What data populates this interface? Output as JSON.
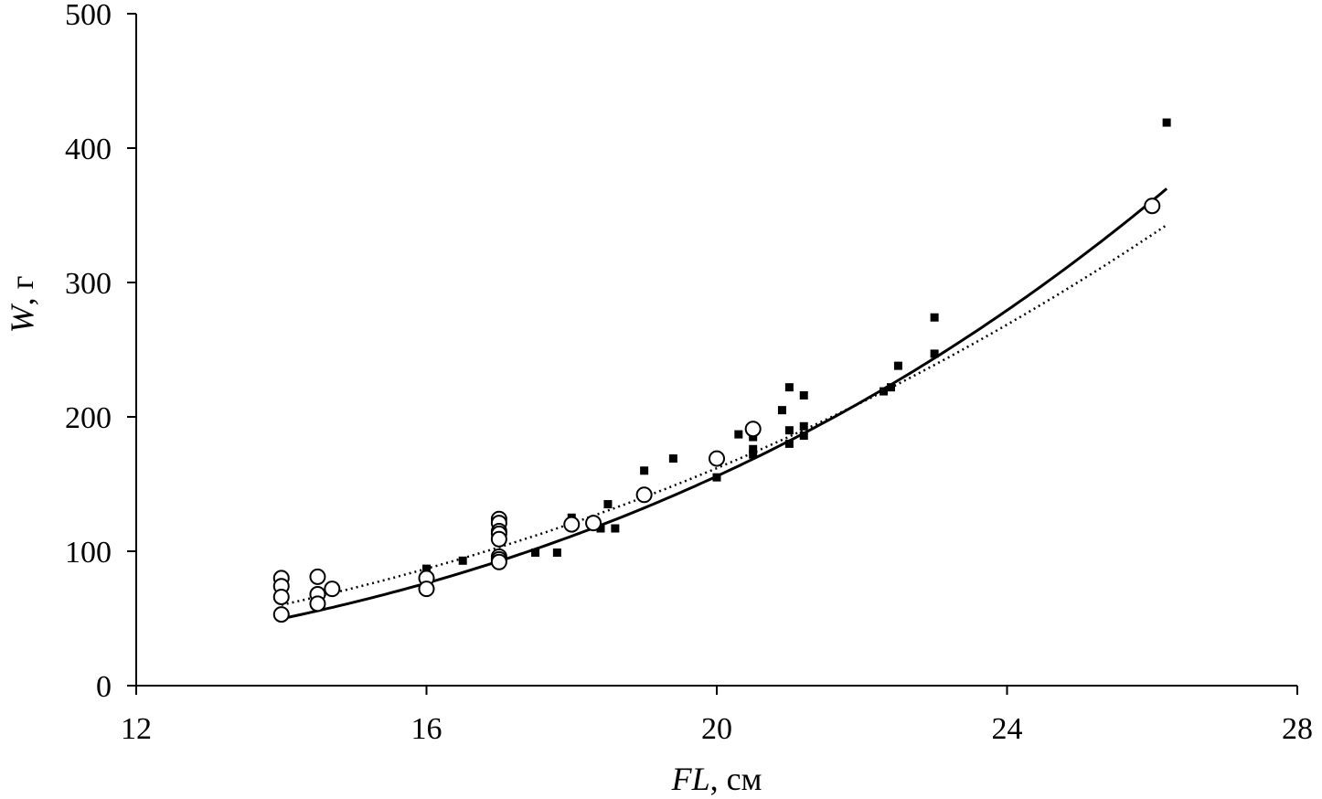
{
  "chart_data": {
    "type": "scatter",
    "xlabel": {
      "var": "FL",
      "unit": ", см"
    },
    "ylabel": {
      "var": "W",
      "unit": ", г"
    },
    "xlim": [
      12,
      28
    ],
    "ylim": [
      0,
      500
    ],
    "xticks": [
      12,
      16,
      20,
      24,
      28
    ],
    "yticks": [
      0,
      100,
      200,
      300,
      400,
      500
    ],
    "grid": false,
    "series": [
      {
        "marker": "filled-square",
        "points": [
          [
            16.0,
            87
          ],
          [
            16.5,
            93
          ],
          [
            17.5,
            99
          ],
          [
            17.8,
            99
          ],
          [
            18.0,
            122
          ],
          [
            18.0,
            125
          ],
          [
            18.4,
            117
          ],
          [
            18.5,
            135
          ],
          [
            18.6,
            117
          ],
          [
            19.0,
            160
          ],
          [
            19.4,
            169
          ],
          [
            20.0,
            155
          ],
          [
            20.3,
            187
          ],
          [
            20.5,
            185
          ],
          [
            20.5,
            176
          ],
          [
            20.5,
            172
          ],
          [
            20.9,
            205
          ],
          [
            21.0,
            222
          ],
          [
            21.0,
            190
          ],
          [
            21.0,
            180
          ],
          [
            21.2,
            216
          ],
          [
            21.2,
            193
          ],
          [
            21.2,
            186
          ],
          [
            22.3,
            219
          ],
          [
            22.4,
            222
          ],
          [
            22.5,
            238
          ],
          [
            23.0,
            274
          ],
          [
            23.0,
            247
          ],
          [
            26.2,
            419
          ]
        ]
      },
      {
        "marker": "open-circle",
        "points": [
          [
            14.0,
            80
          ],
          [
            14.0,
            74
          ],
          [
            14.0,
            66
          ],
          [
            14.0,
            53
          ],
          [
            14.5,
            81
          ],
          [
            14.5,
            68
          ],
          [
            14.5,
            61
          ],
          [
            14.7,
            72
          ],
          [
            16.0,
            80
          ],
          [
            16.0,
            72
          ],
          [
            17.0,
            124
          ],
          [
            17.0,
            121
          ],
          [
            17.0,
            115
          ],
          [
            17.0,
            113
          ],
          [
            17.0,
            109
          ],
          [
            17.0,
            96
          ],
          [
            17.0,
            94
          ],
          [
            17.0,
            92
          ],
          [
            18.0,
            120
          ],
          [
            18.3,
            121
          ],
          [
            19.0,
            142
          ],
          [
            20.0,
            169
          ],
          [
            20.5,
            191
          ],
          [
            26.0,
            357
          ]
        ]
      }
    ],
    "curves": [
      {
        "style": "solid",
        "x_range": [
          14.0,
          26.2
        ],
        "a": 0.0107,
        "b": 3.2
      },
      {
        "style": "dotted",
        "x_range": [
          14.0,
          26.2
        ],
        "a": 0.0391,
        "b": 2.78
      }
    ]
  }
}
